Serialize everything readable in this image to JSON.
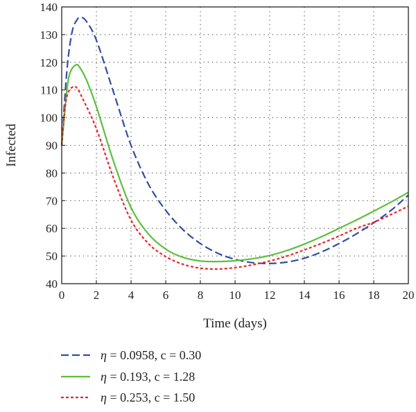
{
  "chart_data": {
    "type": "line",
    "title": "",
    "xlabel": "Time (days)",
    "ylabel": "Infected",
    "xlim": [
      0,
      20
    ],
    "ylim": [
      40,
      140
    ],
    "x_ticks": [
      0,
      2,
      4,
      6,
      8,
      10,
      12,
      14,
      16,
      18,
      20
    ],
    "y_ticks": [
      40,
      50,
      60,
      70,
      80,
      90,
      100,
      110,
      120,
      130,
      140
    ],
    "grid": true,
    "legend_placement": "bottom-left, below plot",
    "series": [
      {
        "name": "η = 0.0958, c = 0.30",
        "legend": {
          "symbol": "η",
          "text": " = 0.0958, c = 0.30"
        },
        "color": "#2f4ea0",
        "dash": "dashed",
        "x": [
          0,
          0.3,
          0.6,
          0.9,
          1.1,
          1.4,
          2,
          3,
          4,
          5,
          6,
          7,
          8,
          9,
          10,
          11,
          12,
          13,
          14,
          15,
          16,
          17,
          18,
          19,
          20
        ],
        "y": [
          90,
          117,
          131,
          135.5,
          136.2,
          135,
          128,
          109,
          90,
          76,
          66.5,
          59.5,
          54.5,
          51,
          48.8,
          47.6,
          47.3,
          47.8,
          49.2,
          51.5,
          54.5,
          58,
          62,
          66.5,
          72
        ]
      },
      {
        "name": "η = 0.193, c = 1.28",
        "legend": {
          "symbol": "η",
          "text": " = 0.193, c = 1.28"
        },
        "color": "#5cbf3a",
        "dash": "solid",
        "x": [
          0,
          0.3,
          0.5,
          0.8,
          1.0,
          1.4,
          2,
          3,
          4,
          5,
          6,
          7,
          8,
          9,
          10,
          11,
          12,
          13,
          14,
          15,
          16,
          17,
          18,
          19,
          20
        ],
        "y": [
          90,
          110,
          116.5,
          119,
          118.5,
          114,
          104,
          84,
          67.5,
          58,
          52.5,
          49.5,
          48.2,
          48,
          48.3,
          49,
          50.2,
          52,
          54.3,
          57,
          60,
          63,
          66.2,
          69.5,
          73
        ]
      },
      {
        "name": "η = 0.253, c = 1.50",
        "legend": {
          "symbol": "η",
          "text": " = 0.253, c = 1.50"
        },
        "color": "#e8242a",
        "dash": "dotted",
        "x": [
          0,
          0.2,
          0.4,
          0.7,
          0.9,
          1.2,
          2,
          3,
          4,
          5,
          6,
          7,
          8,
          9,
          10,
          11,
          12,
          13,
          14,
          15,
          16,
          17,
          18,
          19,
          20
        ],
        "y": [
          90,
          104,
          109.5,
          111.2,
          110.5,
          107,
          96,
          78,
          63,
          54.5,
          49.8,
          47,
          45.6,
          45.3,
          45.8,
          46.8,
          48.2,
          50,
          52.2,
          54.6,
          57.2,
          60,
          62.2,
          65,
          68
        ]
      }
    ]
  }
}
